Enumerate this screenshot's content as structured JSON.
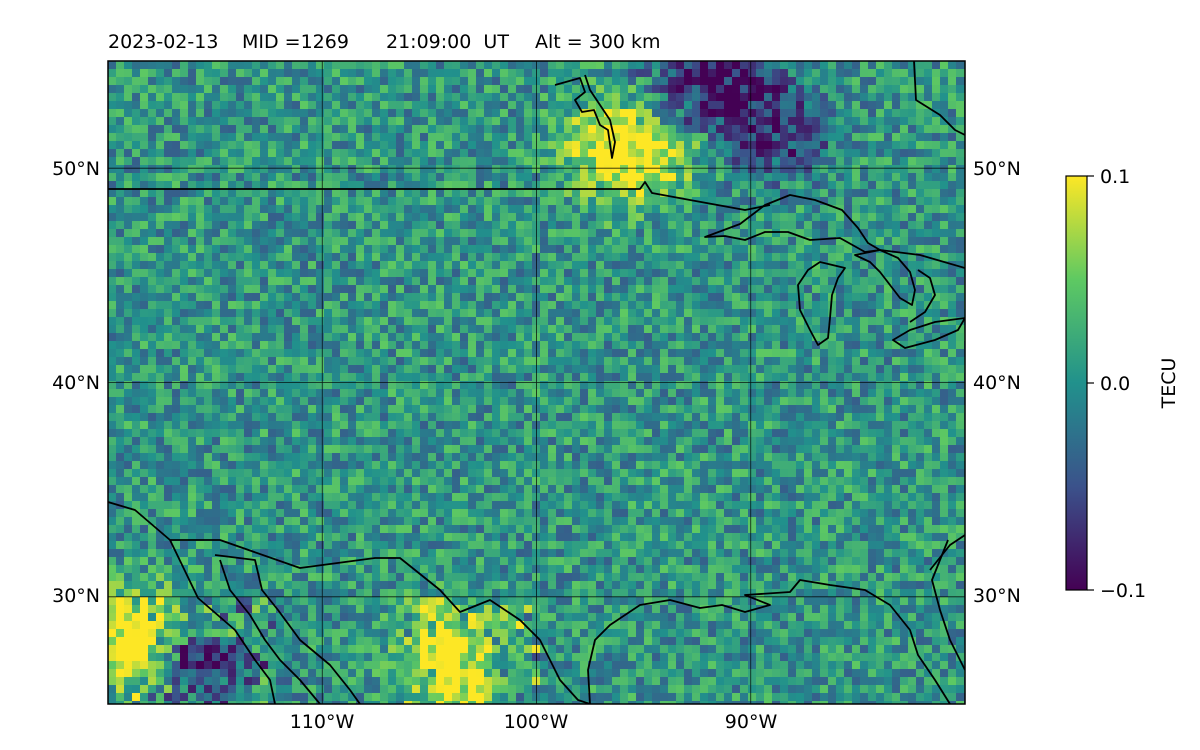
{
  "title": {
    "date": "2023-02-13",
    "mid": "MID =1269",
    "time": "21:09:00  UT",
    "alt": "Alt = 300 km"
  },
  "map": {
    "lon_range": [
      -120,
      -80
    ],
    "lat_range": [
      25,
      55
    ],
    "lon_ticks": [
      {
        "value": -110,
        "label": "110°W"
      },
      {
        "value": -100,
        "label": "100°W"
      },
      {
        "value": -90,
        "label": "90°W"
      }
    ],
    "lat_ticks": [
      {
        "value": 50,
        "label": "50°N"
      },
      {
        "value": 40,
        "label": "40°N"
      },
      {
        "value": 30,
        "label": "30°N"
      }
    ],
    "gridlines": true,
    "field": "TEC perturbation",
    "features": [
      {
        "kind": "negative",
        "lon": -92,
        "lat": 53.3,
        "strength": -1.0
      },
      {
        "kind": "positive",
        "lon": -96.1,
        "lat": 50.9,
        "strength": 1.0
      },
      {
        "kind": "positive",
        "lon": -93.1,
        "lat": 51.5,
        "strength": 0.6
      },
      {
        "kind": "negative",
        "lon": -88.5,
        "lat": 51.8,
        "strength": -0.5
      },
      {
        "kind": "positive",
        "lon": -119,
        "lat": 28,
        "strength": 0.9
      },
      {
        "kind": "positive",
        "lon": -104,
        "lat": 27,
        "strength": 0.9
      },
      {
        "kind": "negative",
        "lon": -115.5,
        "lat": 26.5,
        "strength": -0.7
      }
    ]
  },
  "colorbar": {
    "label": "TECU",
    "min": -0.1,
    "max": 0.1,
    "ticks": [
      {
        "value": 0.1,
        "label": "0.1"
      },
      {
        "value": 0.0,
        "label": "0.0"
      },
      {
        "value": -0.1,
        "label": "−0.1"
      }
    ],
    "colormap": "viridis",
    "stops": [
      "#440154",
      "#3b528b",
      "#21918c",
      "#5ec962",
      "#fde725"
    ]
  }
}
